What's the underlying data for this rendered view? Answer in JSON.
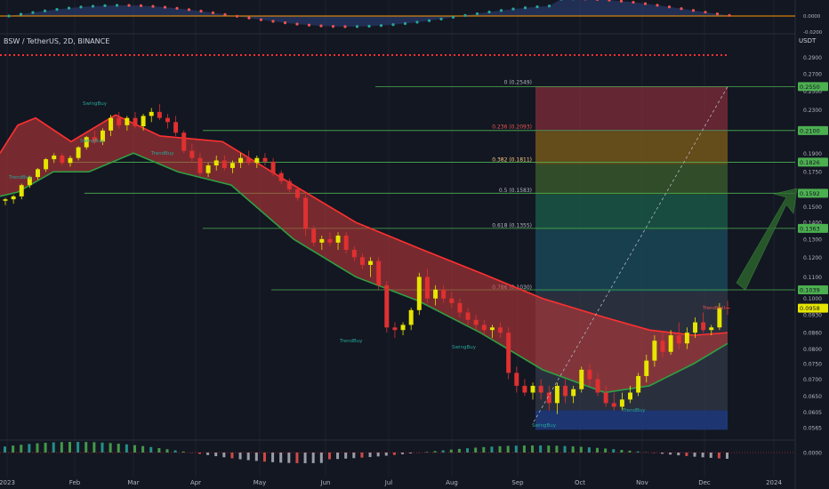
{
  "header": {
    "symbol": "BSW / TetherUS, 2D, BINANCE",
    "currency": "USDT"
  },
  "colors": {
    "bg": "#131722",
    "bull": "#e6e600",
    "bear": "#e03030",
    "band_fill": "#c93b3b",
    "band_upper": "#ff3030",
    "band_lower": "#2ea043",
    "fib_green": "#4caf50"
  },
  "chart_data": [
    {
      "type": "candlestick",
      "title": "",
      "pair": "BSW / TetherUS",
      "interval": "2D",
      "exchange": "BINANCE",
      "x_ticks": [
        "2023",
        "Feb",
        "Mar",
        "Apr",
        "May",
        "Jun",
        "Jul",
        "Aug",
        "Sep",
        "Oct",
        "Nov",
        "Dec",
        "2024"
      ],
      "y_ticks": [
        "0.2900",
        "0.2700",
        "0.2500",
        "0.2300",
        "0.2100",
        "0.1900",
        "0.1750",
        "0.1600",
        "0.1500",
        "0.1400",
        "0.1300",
        "0.1200",
        "0.1100",
        "0.1000",
        "0.0930",
        "0.0860",
        "0.0800",
        "0.0750",
        "0.0700",
        "0.0650",
        "0.0605",
        "0.0565"
      ],
      "y_scale": "log",
      "ylim": [
        0.0535,
        0.3
      ],
      "price_labels": [
        "0.2550",
        "0.2100",
        "0.1826",
        "0.1592",
        "0.1363",
        "0.1039",
        "0.0958"
      ],
      "current_price": 0.0958,
      "fib_levels": [
        {
          "label": "0 (0.2549)",
          "value": 0.2549
        },
        {
          "label": "0.236 (0.2093)",
          "value": 0.2093
        },
        {
          "label": "0.382 (0.1811)",
          "value": 0.1811
        },
        {
          "label": "0.5 (0.1583)",
          "value": 0.1583
        },
        {
          "label": "0.618 (0.1355)",
          "value": 0.1355
        },
        {
          "label": "0.786 (0.1030)",
          "value": 0.103
        }
      ],
      "horizontal_levels": [
        0.255,
        0.21,
        0.1826,
        0.1592,
        0.1363,
        0.1039
      ],
      "signal_labels": [
        "TrendBuy",
        "SwingBuy",
        "TrendBuy",
        "SwingBuy",
        "TrendBuy",
        "SwingBuy",
        "SwingBuy",
        "TrendBuy",
        "TrendSell"
      ],
      "candles": [
        [
          0.154,
          0.156,
          0.151,
          0.155
        ],
        [
          0.155,
          0.158,
          0.152,
          0.157
        ],
        [
          0.157,
          0.166,
          0.155,
          0.165
        ],
        [
          0.165,
          0.172,
          0.163,
          0.171
        ],
        [
          0.171,
          0.178,
          0.169,
          0.177
        ],
        [
          0.177,
          0.186,
          0.175,
          0.185
        ],
        [
          0.185,
          0.19,
          0.182,
          0.188
        ],
        [
          0.188,
          0.19,
          0.18,
          0.182
        ],
        [
          0.182,
          0.188,
          0.179,
          0.186
        ],
        [
          0.186,
          0.196,
          0.184,
          0.195
        ],
        [
          0.195,
          0.205,
          0.193,
          0.204
        ],
        [
          0.204,
          0.21,
          0.198,
          0.2
        ],
        [
          0.2,
          0.212,
          0.197,
          0.21
        ],
        [
          0.21,
          0.225,
          0.205,
          0.222
        ],
        [
          0.222,
          0.228,
          0.212,
          0.215
        ],
        [
          0.215,
          0.224,
          0.21,
          0.222
        ],
        [
          0.222,
          0.228,
          0.212,
          0.214
        ],
        [
          0.214,
          0.226,
          0.21,
          0.224
        ],
        [
          0.224,
          0.232,
          0.218,
          0.228
        ],
        [
          0.228,
          0.236,
          0.22,
          0.222
        ],
        [
          0.222,
          0.226,
          0.212,
          0.218
        ],
        [
          0.218,
          0.224,
          0.205,
          0.208
        ],
        [
          0.208,
          0.21,
          0.19,
          0.192
        ],
        [
          0.192,
          0.198,
          0.183,
          0.186
        ],
        [
          0.186,
          0.19,
          0.172,
          0.174
        ],
        [
          0.174,
          0.182,
          0.171,
          0.18
        ],
        [
          0.18,
          0.188,
          0.176,
          0.184
        ],
        [
          0.184,
          0.188,
          0.176,
          0.178
        ],
        [
          0.178,
          0.184,
          0.174,
          0.182
        ],
        [
          0.182,
          0.19,
          0.178,
          0.186
        ],
        [
          0.186,
          0.192,
          0.18,
          0.182
        ],
        [
          0.182,
          0.188,
          0.178,
          0.186
        ],
        [
          0.186,
          0.19,
          0.18,
          0.183
        ],
        [
          0.183,
          0.186,
          0.172,
          0.174
        ],
        [
          0.174,
          0.176,
          0.166,
          0.168
        ],
        [
          0.168,
          0.17,
          0.16,
          0.162
        ],
        [
          0.162,
          0.164,
          0.154,
          0.156
        ],
        [
          0.156,
          0.158,
          0.132,
          0.136
        ],
        [
          0.136,
          0.138,
          0.126,
          0.128
        ],
        [
          0.128,
          0.132,
          0.124,
          0.13
        ],
        [
          0.13,
          0.134,
          0.126,
          0.128
        ],
        [
          0.128,
          0.134,
          0.124,
          0.132
        ],
        [
          0.132,
          0.134,
          0.122,
          0.124
        ],
        [
          0.124,
          0.126,
          0.118,
          0.12
        ],
        [
          0.12,
          0.122,
          0.114,
          0.116
        ],
        [
          0.116,
          0.12,
          0.11,
          0.118
        ],
        [
          0.118,
          0.12,
          0.104,
          0.106
        ],
        [
          0.106,
          0.108,
          0.086,
          0.088
        ],
        [
          0.088,
          0.09,
          0.084,
          0.087
        ],
        [
          0.087,
          0.09,
          0.085,
          0.089
        ],
        [
          0.089,
          0.096,
          0.087,
          0.095
        ],
        [
          0.095,
          0.112,
          0.093,
          0.11
        ],
        [
          0.11,
          0.114,
          0.098,
          0.1
        ],
        [
          0.1,
          0.106,
          0.097,
          0.104
        ],
        [
          0.104,
          0.106,
          0.098,
          0.1
        ],
        [
          0.1,
          0.103,
          0.096,
          0.098
        ],
        [
          0.098,
          0.1,
          0.092,
          0.094
        ],
        [
          0.094,
          0.096,
          0.089,
          0.091
        ],
        [
          0.091,
          0.093,
          0.087,
          0.089
        ],
        [
          0.089,
          0.091,
          0.085,
          0.087
        ],
        [
          0.087,
          0.089,
          0.084,
          0.088
        ],
        [
          0.088,
          0.09,
          0.084,
          0.086
        ],
        [
          0.086,
          0.088,
          0.07,
          0.072
        ],
        [
          0.072,
          0.074,
          0.066,
          0.068
        ],
        [
          0.068,
          0.07,
          0.065,
          0.066
        ],
        [
          0.066,
          0.069,
          0.064,
          0.068
        ],
        [
          0.068,
          0.07,
          0.064,
          0.066
        ],
        [
          0.066,
          0.068,
          0.061,
          0.063
        ],
        [
          0.063,
          0.069,
          0.06,
          0.068
        ],
        [
          0.068,
          0.07,
          0.063,
          0.065
        ],
        [
          0.065,
          0.068,
          0.063,
          0.067
        ],
        [
          0.067,
          0.074,
          0.066,
          0.073
        ],
        [
          0.073,
          0.075,
          0.068,
          0.07
        ],
        [
          0.07,
          0.072,
          0.065,
          0.066
        ],
        [
          0.066,
          0.068,
          0.062,
          0.063
        ],
        [
          0.063,
          0.066,
          0.061,
          0.062
        ],
        [
          0.062,
          0.066,
          0.061,
          0.064
        ],
        [
          0.064,
          0.068,
          0.063,
          0.066
        ],
        [
          0.066,
          0.072,
          0.065,
          0.071
        ],
        [
          0.071,
          0.078,
          0.069,
          0.076
        ],
        [
          0.076,
          0.085,
          0.074,
          0.083
        ],
        [
          0.083,
          0.086,
          0.077,
          0.079
        ],
        [
          0.079,
          0.087,
          0.078,
          0.085
        ],
        [
          0.085,
          0.09,
          0.08,
          0.082
        ],
        [
          0.082,
          0.088,
          0.08,
          0.086
        ],
        [
          0.086,
          0.092,
          0.084,
          0.09
        ],
        [
          0.09,
          0.094,
          0.086,
          0.087
        ],
        [
          0.087,
          0.089,
          0.085,
          0.088
        ],
        [
          0.088,
          0.098,
          0.087,
          0.096
        ],
        [
          0.096,
          0.099,
          0.093,
          0.0958
        ]
      ]
    }
  ]
}
